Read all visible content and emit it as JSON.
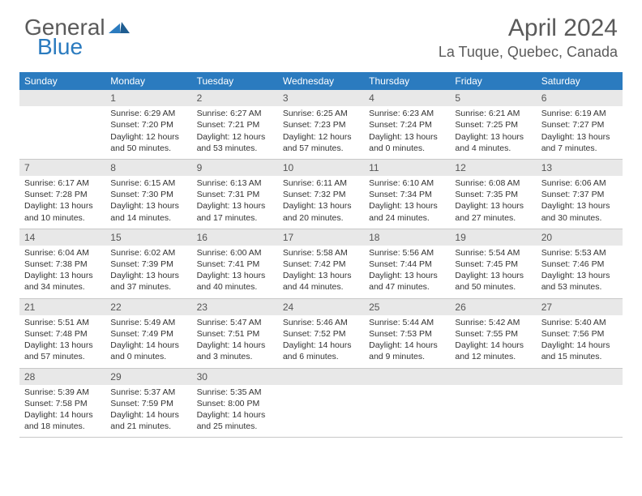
{
  "logo": {
    "text_a": "General",
    "text_b": "Blue"
  },
  "title": "April 2024",
  "location": "La Tuque, Quebec, Canada",
  "colors": {
    "brand": "#2b7bbf",
    "header_bg": "#2b7bbf",
    "daynum_bg": "#e8e8e8",
    "text": "#333333",
    "muted": "#5a5a5a"
  },
  "weekdays": [
    "Sunday",
    "Monday",
    "Tuesday",
    "Wednesday",
    "Thursday",
    "Friday",
    "Saturday"
  ],
  "weeks": [
    [
      null,
      {
        "d": "1",
        "sr": "Sunrise: 6:29 AM",
        "ss": "Sunset: 7:20 PM",
        "dl1": "Daylight: 12 hours",
        "dl2": "and 50 minutes."
      },
      {
        "d": "2",
        "sr": "Sunrise: 6:27 AM",
        "ss": "Sunset: 7:21 PM",
        "dl1": "Daylight: 12 hours",
        "dl2": "and 53 minutes."
      },
      {
        "d": "3",
        "sr": "Sunrise: 6:25 AM",
        "ss": "Sunset: 7:23 PM",
        "dl1": "Daylight: 12 hours",
        "dl2": "and 57 minutes."
      },
      {
        "d": "4",
        "sr": "Sunrise: 6:23 AM",
        "ss": "Sunset: 7:24 PM",
        "dl1": "Daylight: 13 hours",
        "dl2": "and 0 minutes."
      },
      {
        "d": "5",
        "sr": "Sunrise: 6:21 AM",
        "ss": "Sunset: 7:25 PM",
        "dl1": "Daylight: 13 hours",
        "dl2": "and 4 minutes."
      },
      {
        "d": "6",
        "sr": "Sunrise: 6:19 AM",
        "ss": "Sunset: 7:27 PM",
        "dl1": "Daylight: 13 hours",
        "dl2": "and 7 minutes."
      }
    ],
    [
      {
        "d": "7",
        "sr": "Sunrise: 6:17 AM",
        "ss": "Sunset: 7:28 PM",
        "dl1": "Daylight: 13 hours",
        "dl2": "and 10 minutes."
      },
      {
        "d": "8",
        "sr": "Sunrise: 6:15 AM",
        "ss": "Sunset: 7:30 PM",
        "dl1": "Daylight: 13 hours",
        "dl2": "and 14 minutes."
      },
      {
        "d": "9",
        "sr": "Sunrise: 6:13 AM",
        "ss": "Sunset: 7:31 PM",
        "dl1": "Daylight: 13 hours",
        "dl2": "and 17 minutes."
      },
      {
        "d": "10",
        "sr": "Sunrise: 6:11 AM",
        "ss": "Sunset: 7:32 PM",
        "dl1": "Daylight: 13 hours",
        "dl2": "and 20 minutes."
      },
      {
        "d": "11",
        "sr": "Sunrise: 6:10 AM",
        "ss": "Sunset: 7:34 PM",
        "dl1": "Daylight: 13 hours",
        "dl2": "and 24 minutes."
      },
      {
        "d": "12",
        "sr": "Sunrise: 6:08 AM",
        "ss": "Sunset: 7:35 PM",
        "dl1": "Daylight: 13 hours",
        "dl2": "and 27 minutes."
      },
      {
        "d": "13",
        "sr": "Sunrise: 6:06 AM",
        "ss": "Sunset: 7:37 PM",
        "dl1": "Daylight: 13 hours",
        "dl2": "and 30 minutes."
      }
    ],
    [
      {
        "d": "14",
        "sr": "Sunrise: 6:04 AM",
        "ss": "Sunset: 7:38 PM",
        "dl1": "Daylight: 13 hours",
        "dl2": "and 34 minutes."
      },
      {
        "d": "15",
        "sr": "Sunrise: 6:02 AM",
        "ss": "Sunset: 7:39 PM",
        "dl1": "Daylight: 13 hours",
        "dl2": "and 37 minutes."
      },
      {
        "d": "16",
        "sr": "Sunrise: 6:00 AM",
        "ss": "Sunset: 7:41 PM",
        "dl1": "Daylight: 13 hours",
        "dl2": "and 40 minutes."
      },
      {
        "d": "17",
        "sr": "Sunrise: 5:58 AM",
        "ss": "Sunset: 7:42 PM",
        "dl1": "Daylight: 13 hours",
        "dl2": "and 44 minutes."
      },
      {
        "d": "18",
        "sr": "Sunrise: 5:56 AM",
        "ss": "Sunset: 7:44 PM",
        "dl1": "Daylight: 13 hours",
        "dl2": "and 47 minutes."
      },
      {
        "d": "19",
        "sr": "Sunrise: 5:54 AM",
        "ss": "Sunset: 7:45 PM",
        "dl1": "Daylight: 13 hours",
        "dl2": "and 50 minutes."
      },
      {
        "d": "20",
        "sr": "Sunrise: 5:53 AM",
        "ss": "Sunset: 7:46 PM",
        "dl1": "Daylight: 13 hours",
        "dl2": "and 53 minutes."
      }
    ],
    [
      {
        "d": "21",
        "sr": "Sunrise: 5:51 AM",
        "ss": "Sunset: 7:48 PM",
        "dl1": "Daylight: 13 hours",
        "dl2": "and 57 minutes."
      },
      {
        "d": "22",
        "sr": "Sunrise: 5:49 AM",
        "ss": "Sunset: 7:49 PM",
        "dl1": "Daylight: 14 hours",
        "dl2": "and 0 minutes."
      },
      {
        "d": "23",
        "sr": "Sunrise: 5:47 AM",
        "ss": "Sunset: 7:51 PM",
        "dl1": "Daylight: 14 hours",
        "dl2": "and 3 minutes."
      },
      {
        "d": "24",
        "sr": "Sunrise: 5:46 AM",
        "ss": "Sunset: 7:52 PM",
        "dl1": "Daylight: 14 hours",
        "dl2": "and 6 minutes."
      },
      {
        "d": "25",
        "sr": "Sunrise: 5:44 AM",
        "ss": "Sunset: 7:53 PM",
        "dl1": "Daylight: 14 hours",
        "dl2": "and 9 minutes."
      },
      {
        "d": "26",
        "sr": "Sunrise: 5:42 AM",
        "ss": "Sunset: 7:55 PM",
        "dl1": "Daylight: 14 hours",
        "dl2": "and 12 minutes."
      },
      {
        "d": "27",
        "sr": "Sunrise: 5:40 AM",
        "ss": "Sunset: 7:56 PM",
        "dl1": "Daylight: 14 hours",
        "dl2": "and 15 minutes."
      }
    ],
    [
      {
        "d": "28",
        "sr": "Sunrise: 5:39 AM",
        "ss": "Sunset: 7:58 PM",
        "dl1": "Daylight: 14 hours",
        "dl2": "and 18 minutes."
      },
      {
        "d": "29",
        "sr": "Sunrise: 5:37 AM",
        "ss": "Sunset: 7:59 PM",
        "dl1": "Daylight: 14 hours",
        "dl2": "and 21 minutes."
      },
      {
        "d": "30",
        "sr": "Sunrise: 5:35 AM",
        "ss": "Sunset: 8:00 PM",
        "dl1": "Daylight: 14 hours",
        "dl2": "and 25 minutes."
      },
      null,
      null,
      null,
      null
    ]
  ]
}
